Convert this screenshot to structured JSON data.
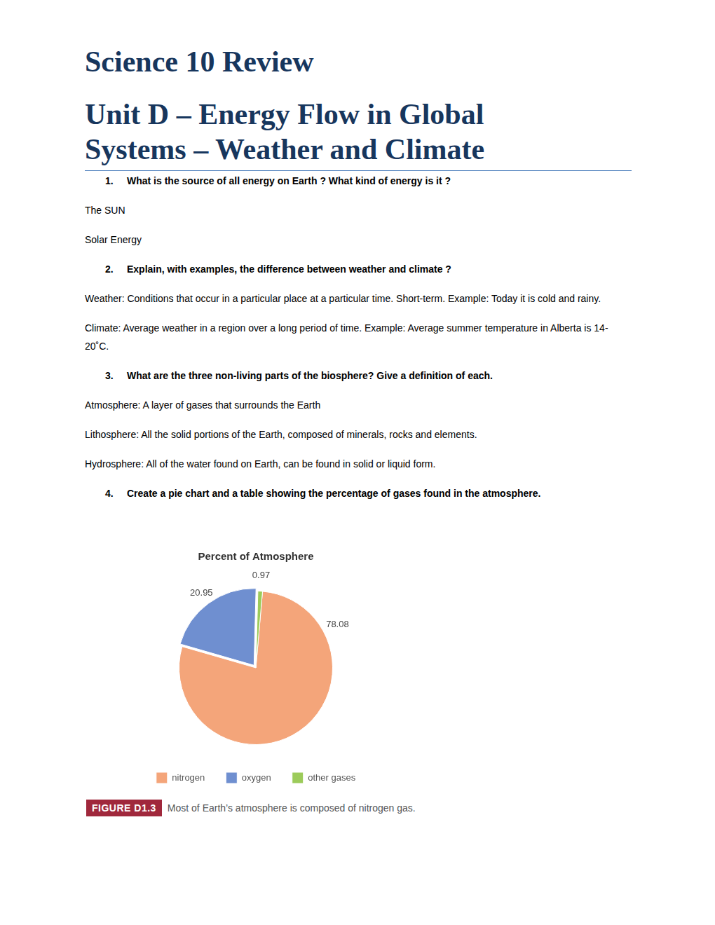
{
  "header": {
    "title": "Science 10 Review",
    "subtitle": "Unit D – Energy Flow in Global Systems – Weather and Climate"
  },
  "questions": [
    {
      "number": "1.",
      "text": "What is the source of all energy on Earth ? What kind of energy is it ?",
      "answers": [
        "The SUN",
        "Solar Energy"
      ]
    },
    {
      "number": "2.",
      "text": "Explain, with examples, the difference between weather and climate ?",
      "answers": [
        "Weather: Conditions that occur in a particular place at a particular time.  Short-term. Example: Today it is cold and rainy.",
        "Climate: Average weather in a region over a long period of time.  Example: Average summer temperature in Alberta is 14-20˚C."
      ]
    },
    {
      "number": "3.",
      "text": "What are the three non-living parts of the biosphere? Give a definition of each.",
      "answers": [
        "Atmosphere: A layer of gases that surrounds the Earth",
        "Lithosphere: All the solid portions of the Earth, composed of minerals, rocks and elements.",
        "Hydrosphere: All of the water found on Earth, can be found in solid or liquid form."
      ]
    },
    {
      "number": "4.",
      "text": "Create a pie chart and a table showing the percentage of gases found in the atmosphere."
    }
  ],
  "chart_data": {
    "type": "pie",
    "title": "Percent of Atmosphere",
    "categories": [
      "nitrogen",
      "oxygen",
      "other gases"
    ],
    "values": [
      78.08,
      20.95,
      0.97
    ],
    "colors": [
      "#f4a57a",
      "#6f8fd0",
      "#9ccb5a"
    ],
    "legend": "bottom",
    "data_labels": true
  },
  "caption": {
    "label": "FIGURE D1.3",
    "text": "Most of Earth’s atmosphere is composed of nitrogen gas."
  }
}
